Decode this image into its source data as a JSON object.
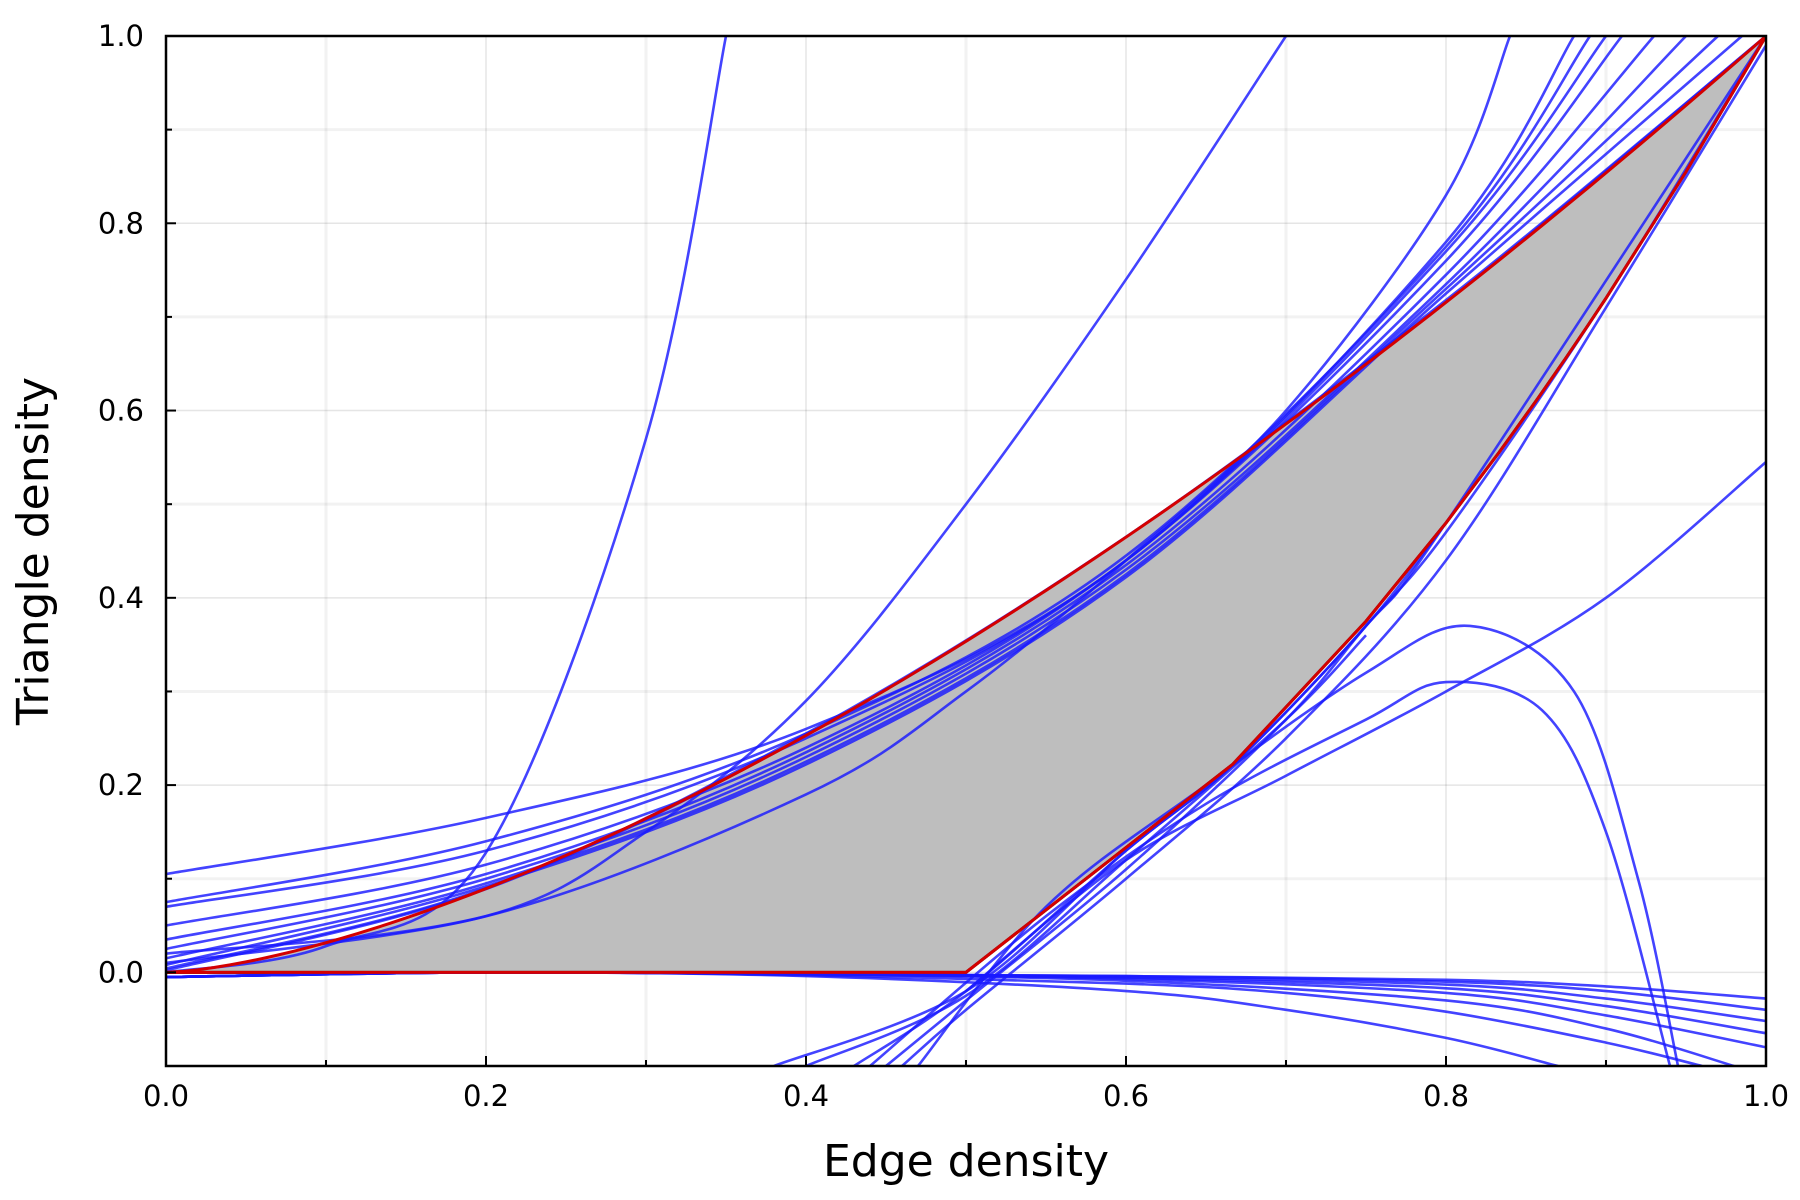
{
  "chart_data": {
    "type": "line",
    "title": "",
    "xlabel": "Edge density",
    "ylabel": "Triangle density",
    "xlim": [
      0,
      1
    ],
    "ylim": [
      -0.1,
      1
    ],
    "x_ticks": [
      "0.0",
      "0.2",
      "0.4",
      "0.6",
      "0.8",
      "1.0"
    ],
    "y_ticks": [
      "0.0",
      "0.2",
      "0.4",
      "0.6",
      "0.8"
    ],
    "y_top_label": "1.0",
    "grid": true,
    "legend": "none",
    "colors": {
      "region_fill": "#bebebe",
      "tangent_lines": "#1a1aff",
      "region_boundary": "#d40000",
      "lower_boundary_inner": "#000000"
    },
    "feasible_region": {
      "upper_boundary": "y = x^1.5",
      "lower_boundary": [
        [
          0.0,
          0.0
        ],
        [
          0.5,
          0.0
        ],
        [
          0.6667,
          0.2222
        ],
        [
          0.75,
          0.375
        ],
        [
          0.8,
          0.48
        ],
        [
          0.8333,
          0.5556
        ],
        [
          0.8571,
          0.6122
        ],
        [
          0.875,
          0.6563
        ],
        [
          0.8889,
          0.6914
        ],
        [
          0.9,
          0.72
        ],
        [
          0.95,
          0.855
        ],
        [
          1.0,
          1.0
        ]
      ]
    },
    "series": [
      {
        "x": [
          0.0,
          0.1,
          0.2,
          0.3,
          0.35
        ],
        "y": [
          0.0,
          0.028,
          0.128,
          0.57,
          1.0
        ]
      },
      {
        "x": [
          0.0,
          0.2,
          0.3,
          0.4,
          0.5,
          0.6,
          0.7
        ],
        "y": [
          0.01,
          0.06,
          0.15,
          0.29,
          0.5,
          0.74,
          1.0
        ]
      },
      {
        "x": [
          0.0,
          0.2,
          0.4,
          0.5,
          0.6,
          0.7,
          0.8,
          0.84
        ],
        "y": [
          0.02,
          0.06,
          0.19,
          0.3,
          0.44,
          0.6,
          0.83,
          1.0
        ]
      },
      {
        "x": [
          0.0,
          0.2,
          0.4,
          0.6,
          0.8,
          0.88
        ],
        "y": [
          0.105,
          0.165,
          0.26,
          0.44,
          0.78,
          1.0
        ]
      },
      {
        "x": [
          0.0,
          0.2,
          0.4,
          0.6,
          0.8,
          0.89
        ],
        "y": [
          0.075,
          0.14,
          0.255,
          0.445,
          0.775,
          1.0
        ]
      },
      {
        "x": [
          0.0,
          0.2,
          0.4,
          0.6,
          0.8,
          0.9
        ],
        "y": [
          0.07,
          0.13,
          0.25,
          0.44,
          0.77,
          1.0
        ]
      },
      {
        "x": [
          0.0,
          0.2,
          0.4,
          0.6,
          0.8,
          0.91
        ],
        "y": [
          0.05,
          0.115,
          0.24,
          0.44,
          0.76,
          1.0
        ]
      },
      {
        "x": [
          0.0,
          0.2,
          0.4,
          0.6,
          0.8,
          0.93
        ],
        "y": [
          0.035,
          0.105,
          0.235,
          0.435,
          0.745,
          1.0
        ]
      },
      {
        "x": [
          0.0,
          0.2,
          0.4,
          0.6,
          0.8,
          0.95
        ],
        "y": [
          0.025,
          0.1,
          0.23,
          0.43,
          0.735,
          1.0
        ]
      },
      {
        "x": [
          0.0,
          0.2,
          0.4,
          0.6,
          0.8,
          0.97
        ],
        "y": [
          0.015,
          0.095,
          0.225,
          0.425,
          0.73,
          1.0
        ]
      },
      {
        "x": [
          0.0,
          0.2,
          0.4,
          0.6,
          0.8,
          0.985
        ],
        "y": [
          0.008,
          0.092,
          0.222,
          0.422,
          0.725,
          1.0
        ]
      },
      {
        "x": [
          0.0,
          0.2,
          0.4,
          0.6,
          0.8,
          1.0
        ],
        "y": [
          0.004,
          0.09,
          0.255,
          0.465,
          0.718,
          1.0
        ]
      },
      {
        "x": [
          0.0,
          0.2,
          0.4,
          0.6,
          0.8,
          1.0
        ],
        "y": [
          0.002,
          0.089,
          0.253,
          0.465,
          0.716,
          1.0
        ]
      },
      {
        "x": [
          0.43,
          0.5,
          0.6,
          0.667,
          0.75,
          0.8,
          1.0
        ],
        "y": [
          -0.1,
          -0.02,
          0.13,
          0.222,
          0.37,
          0.48,
          1.0
        ]
      },
      {
        "x": [
          0.45,
          0.5,
          0.6,
          0.7,
          0.75,
          0.8,
          0.9,
          1.0
        ],
        "y": [
          -0.1,
          -0.03,
          0.11,
          0.27,
          0.37,
          0.47,
          0.72,
          1.0
        ]
      },
      {
        "x": [
          0.46,
          0.5,
          0.6,
          0.7,
          0.8,
          0.9,
          1.0
        ],
        "y": [
          -0.1,
          -0.04,
          0.1,
          0.25,
          0.44,
          0.71,
          0.99
        ]
      },
      {
        "x": [
          0.38,
          0.5,
          0.6,
          0.667,
          0.75,
          0.8
        ],
        "y": [
          -0.1,
          -0.02,
          0.13,
          0.222,
          0.37,
          0.48
        ]
      },
      {
        "x": [
          0.4,
          0.5,
          0.6,
          0.7,
          0.75
        ],
        "y": [
          -0.1,
          -0.025,
          0.12,
          0.27,
          0.36
        ]
      },
      {
        "x": [
          0.47,
          0.55,
          0.65,
          0.75,
          0.815,
          0.88,
          0.92,
          0.945
        ],
        "y": [
          -0.1,
          0.07,
          0.2,
          0.32,
          0.37,
          0.3,
          0.1,
          -0.1
        ]
      },
      {
        "x": [
          0.44,
          0.55,
          0.65,
          0.75,
          0.8,
          0.86,
          0.9,
          0.94
        ],
        "y": [
          -0.1,
          0.06,
          0.18,
          0.27,
          0.31,
          0.28,
          0.15,
          -0.1
        ]
      },
      {
        "x": [
          0.5,
          0.6,
          0.7,
          0.8,
          0.9,
          1.0
        ],
        "y": [
          -0.02,
          0.12,
          0.21,
          0.3,
          0.4,
          0.545
        ]
      },
      {
        "x": [
          0.0,
          0.2,
          0.4,
          0.6,
          0.8,
          0.9,
          1.0
        ],
        "y": [
          -0.005,
          0.0,
          -0.002,
          -0.004,
          -0.008,
          -0.015,
          -0.028
        ]
      },
      {
        "x": [
          0.0,
          0.2,
          0.4,
          0.6,
          0.8,
          0.9,
          1.0
        ],
        "y": [
          -0.005,
          0.0,
          -0.002,
          -0.004,
          -0.01,
          -0.02,
          -0.04
        ]
      },
      {
        "x": [
          0.0,
          0.2,
          0.4,
          0.6,
          0.8,
          0.9,
          1.0
        ],
        "y": [
          -0.005,
          0.0,
          -0.002,
          -0.005,
          -0.013,
          -0.028,
          -0.052
        ]
      },
      {
        "x": [
          0.0,
          0.2,
          0.4,
          0.6,
          0.8,
          0.9,
          1.0
        ],
        "y": [
          -0.005,
          0.0,
          -0.002,
          -0.006,
          -0.017,
          -0.036,
          -0.065
        ]
      },
      {
        "x": [
          0.0,
          0.2,
          0.4,
          0.6,
          0.8,
          0.9,
          1.0
        ],
        "y": [
          -0.005,
          0.0,
          -0.002,
          -0.007,
          -0.022,
          -0.046,
          -0.08
        ]
      },
      {
        "x": [
          0.0,
          0.2,
          0.4,
          0.6,
          0.8,
          0.9,
          0.98
        ],
        "y": [
          -0.005,
          0.0,
          -0.002,
          -0.009,
          -0.03,
          -0.06,
          -0.1
        ]
      },
      {
        "x": [
          0.0,
          0.2,
          0.4,
          0.6,
          0.7,
          0.8,
          0.9,
          0.96
        ],
        "y": [
          -0.005,
          0.0,
          -0.003,
          -0.012,
          -0.022,
          -0.042,
          -0.075,
          -0.1
        ]
      },
      {
        "x": [
          0.0,
          0.2,
          0.4,
          0.6,
          0.7,
          0.8,
          0.87
        ],
        "y": [
          -0.005,
          0.0,
          -0.004,
          -0.02,
          -0.04,
          -0.07,
          -0.1
        ]
      }
    ]
  }
}
